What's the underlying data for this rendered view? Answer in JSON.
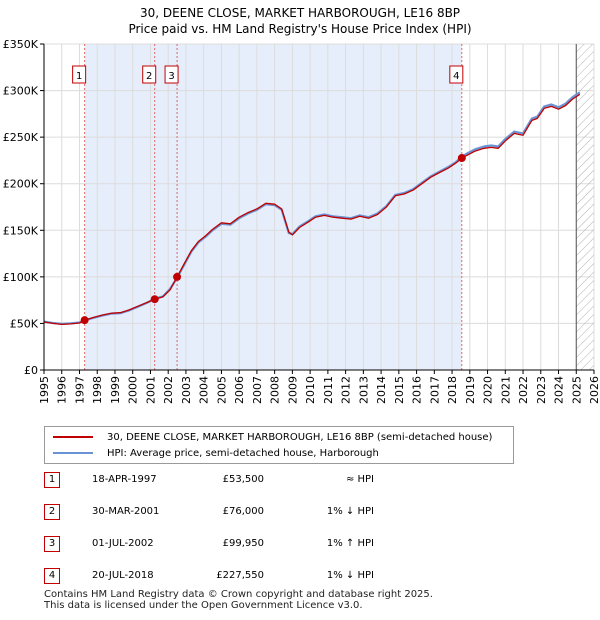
{
  "title": "30, DEENE CLOSE, MARKET HARBOROUGH, LE16 8BP",
  "subtitle": "Price paid vs. HM Land Registry's House Price Index (HPI)",
  "colors": {
    "price": "#c00000",
    "hpi": "#6a93d4",
    "band": "#e7eefb",
    "grid": "#dcdcdc",
    "marker_line": "#e06666"
  },
  "legend": {
    "price_label": "30, DEENE CLOSE, MARKET HARBOROUGH, LE16 8BP (semi-detached house)",
    "hpi_label": "HPI: Average price, semi-detached house, Harborough"
  },
  "sales": [
    {
      "n": "1",
      "date": "18-APR-1997",
      "price": "£53,500",
      "hpi": "≈ HPI"
    },
    {
      "n": "2",
      "date": "30-MAR-2001",
      "price": "£76,000",
      "hpi": "1% ↓ HPI"
    },
    {
      "n": "3",
      "date": "01-JUL-2002",
      "price": "£99,950",
      "hpi": "1% ↑ HPI"
    },
    {
      "n": "4",
      "date": "20-JUL-2018",
      "price": "£227,550",
      "hpi": "1% ↓ HPI"
    }
  ],
  "footer": {
    "line1": "Contains HM Land Registry data © Crown copyright and database right 2025.",
    "line2": "This data is licensed under the Open Government Licence v3.0."
  },
  "chart_data": {
    "type": "line",
    "title": "30, DEENE CLOSE, MARKET HARBOROUGH, LE16 8BP",
    "subtitle": "Price paid vs. HM Land Registry's House Price Index (HPI)",
    "xlim": [
      1995,
      2026
    ],
    "ylim": [
      0,
      350000
    ],
    "x_ticks": [
      "1995",
      "1996",
      "1997",
      "1998",
      "1999",
      "2000",
      "2001",
      "2002",
      "2003",
      "2004",
      "2005",
      "2006",
      "2007",
      "2008",
      "2009",
      "2010",
      "2011",
      "2012",
      "2013",
      "2014",
      "2015",
      "2016",
      "2017",
      "2018",
      "2019",
      "2020",
      "2021",
      "2022",
      "2023",
      "2024",
      "2025",
      "2026"
    ],
    "y_ticks": [
      {
        "v": 0,
        "label": "£0"
      },
      {
        "v": 50000,
        "label": "£50K"
      },
      {
        "v": 100000,
        "label": "£100K"
      },
      {
        "v": 150000,
        "label": "£150K"
      },
      {
        "v": 200000,
        "label": "£200K"
      },
      {
        "v": 250000,
        "label": "£250K"
      },
      {
        "v": 300000,
        "label": "£300K"
      },
      {
        "v": 350000,
        "label": "£350K"
      }
    ],
    "hpi_band": [
      1997.3,
      2018.55
    ],
    "hatch_from": 2025.0,
    "sale_markers": [
      {
        "n": "1",
        "x": 1997.29,
        "y": 53500
      },
      {
        "n": "2",
        "x": 2001.24,
        "y": 76000
      },
      {
        "n": "3",
        "x": 2002.5,
        "y": 99950
      },
      {
        "n": "4",
        "x": 2018.55,
        "y": 227550
      }
    ],
    "series": [
      {
        "name": "HPI: Average price, semi-detached house, Harborough",
        "x": [
          1995.0,
          1995.5,
          1996.0,
          1996.5,
          1997.0,
          1997.3,
          1997.8,
          1998.3,
          1998.8,
          1999.3,
          1999.8,
          2000.3,
          2000.8,
          2001.24,
          2001.7,
          2002.1,
          2002.5,
          2002.9,
          2003.3,
          2003.7,
          2004.1,
          2004.5,
          2005.0,
          2005.5,
          2006.0,
          2006.5,
          2007.0,
          2007.5,
          2008.0,
          2008.4,
          2008.8,
          2009.0,
          2009.4,
          2009.9,
          2010.3,
          2010.8,
          2011.3,
          2011.8,
          2012.3,
          2012.8,
          2013.3,
          2013.8,
          2014.3,
          2014.8,
          2015.3,
          2015.8,
          2016.3,
          2016.8,
          2017.3,
          2017.8,
          2018.2,
          2018.55,
          2018.9,
          2019.3,
          2019.8,
          2020.2,
          2020.6,
          2021.0,
          2021.5,
          2022.0,
          2022.5,
          2022.8,
          2023.2,
          2023.6,
          2024.0,
          2024.4,
          2024.8,
          2025.2
        ],
        "values": [
          52000,
          50500,
          49500,
          50000,
          51000,
          53500,
          56000,
          58500,
          60500,
          61000,
          64000,
          68000,
          72000,
          76500,
          79000,
          87000,
          99000,
          113000,
          127000,
          137000,
          143000,
          150000,
          157000,
          156000,
          163000,
          168000,
          172000,
          178000,
          177000,
          172000,
          147000,
          146000,
          154000,
          160000,
          165000,
          167000,
          165000,
          164000,
          163000,
          166000,
          164000,
          168000,
          176000,
          188000,
          190000,
          194000,
          201000,
          208000,
          213000,
          218000,
          223000,
          229000,
          233000,
          237000,
          240000,
          241000,
          240000,
          248000,
          256000,
          254000,
          270000,
          272000,
          283000,
          285000,
          282000,
          286000,
          293000,
          298000
        ]
      },
      {
        "name": "30, DEENE CLOSE, MARKET HARBOROUGH, LE16 8BP (semi-detached house)",
        "x": [
          1995.0,
          1995.5,
          1996.0,
          1996.5,
          1997.0,
          1997.29,
          1997.8,
          1998.3,
          1998.8,
          1999.3,
          1999.8,
          2000.3,
          2000.8,
          2001.24,
          2001.7,
          2002.1,
          2002.5,
          2002.9,
          2003.3,
          2003.7,
          2004.1,
          2004.5,
          2005.0,
          2005.5,
          2006.0,
          2006.5,
          2007.0,
          2007.5,
          2008.0,
          2008.4,
          2008.8,
          2009.0,
          2009.4,
          2009.9,
          2010.3,
          2010.8,
          2011.3,
          2011.8,
          2012.3,
          2012.8,
          2013.3,
          2013.8,
          2014.3,
          2014.8,
          2015.3,
          2015.8,
          2016.3,
          2016.8,
          2017.3,
          2017.8,
          2018.2,
          2018.55,
          2018.9,
          2019.3,
          2019.8,
          2020.2,
          2020.6,
          2021.0,
          2021.5,
          2022.0,
          2022.5,
          2022.8,
          2023.2,
          2023.6,
          2024.0,
          2024.4,
          2024.8,
          2025.2
        ],
        "values": [
          51500,
          50000,
          49000,
          49500,
          50500,
          53500,
          56500,
          59000,
          61000,
          61500,
          64500,
          68500,
          72500,
          76000,
          78500,
          86000,
          99950,
          114000,
          128000,
          138000,
          144000,
          151000,
          158000,
          157000,
          164000,
          169000,
          173000,
          179000,
          178000,
          173000,
          148000,
          145000,
          153000,
          159000,
          164000,
          166000,
          164000,
          163000,
          162000,
          165000,
          163000,
          167000,
          175000,
          187000,
          189000,
          193000,
          200000,
          207000,
          212000,
          217000,
          222000,
          227550,
          231000,
          235000,
          238000,
          239000,
          238000,
          246000,
          254000,
          252000,
          268000,
          270000,
          281000,
          283000,
          280000,
          284000,
          291000,
          296000
        ]
      }
    ]
  }
}
